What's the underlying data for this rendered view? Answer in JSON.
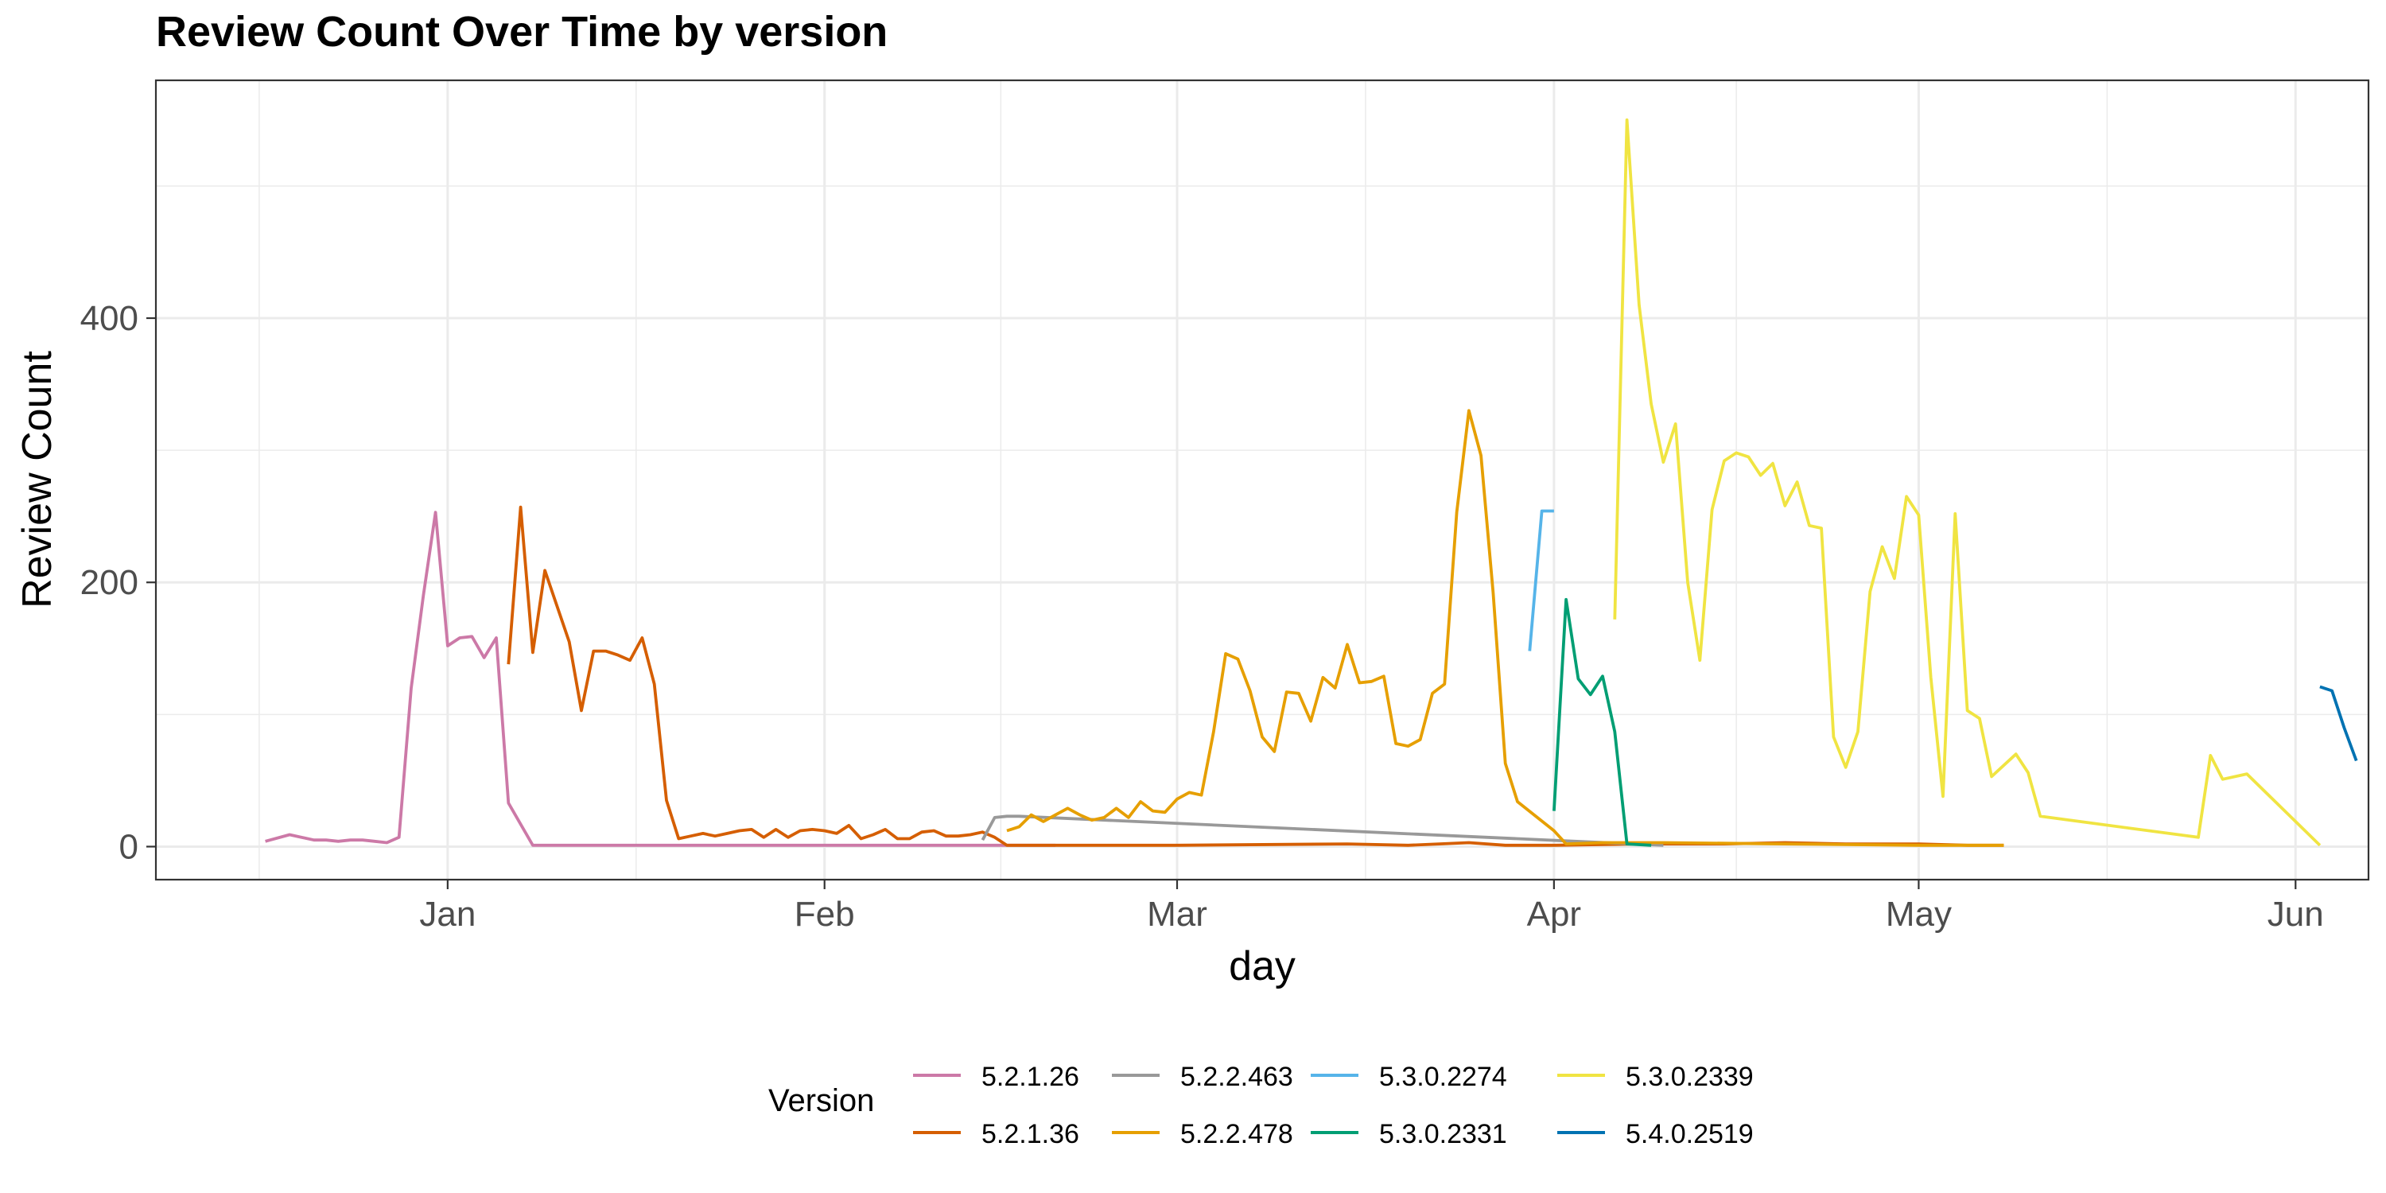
{
  "chart_data": {
    "type": "line",
    "title": "Review Count Over Time by version",
    "xlabel": "day",
    "ylabel": "Review Count",
    "x_ticks": [
      "Jan",
      "Feb",
      "Mar",
      "Apr",
      "May",
      "Jun"
    ],
    "x_tick_dates": [
      "2024-01-01",
      "2024-02-01",
      "2024-03-01",
      "2024-04-01",
      "2024-05-01",
      "2024-06-01"
    ],
    "xlim": [
      "2023-12-08",
      "2024-06-07"
    ],
    "y_ticks": [
      0,
      200,
      400
    ],
    "ylim": [
      -25,
      580
    ],
    "grid": true,
    "legend_title": "Version",
    "legend_position": "bottom",
    "series": [
      {
        "name": "5.2.1.26",
        "color": "#CC79A7",
        "points": [
          [
            "2023-12-17",
            4
          ],
          [
            "2023-12-19",
            9
          ],
          [
            "2023-12-21",
            5
          ],
          [
            "2023-12-22",
            5
          ],
          [
            "2023-12-23",
            4
          ],
          [
            "2023-12-24",
            5
          ],
          [
            "2023-12-25",
            5
          ],
          [
            "2023-12-26",
            4
          ],
          [
            "2023-12-27",
            3
          ],
          [
            "2023-12-28",
            7
          ],
          [
            "2023-12-29",
            120
          ],
          [
            "2023-12-30",
            190
          ],
          [
            "2023-12-31",
            253
          ],
          [
            "2024-01-01",
            152
          ],
          [
            "2024-01-02",
            158
          ],
          [
            "2024-01-03",
            159
          ],
          [
            "2024-01-04",
            143
          ],
          [
            "2024-01-05",
            158
          ],
          [
            "2024-01-06",
            33
          ],
          [
            "2024-01-08",
            1
          ],
          [
            "2024-01-20",
            1
          ],
          [
            "2024-02-01",
            1
          ],
          [
            "2024-02-15",
            1
          ],
          [
            "2024-02-20",
            1
          ]
        ]
      },
      {
        "name": "5.2.1.36",
        "color": "#D55E00",
        "points": [
          [
            "2024-01-06",
            138
          ],
          [
            "2024-01-07",
            257
          ],
          [
            "2024-01-08",
            147
          ],
          [
            "2024-01-09",
            209
          ],
          [
            "2024-01-11",
            155
          ],
          [
            "2024-01-12",
            103
          ],
          [
            "2024-01-13",
            148
          ],
          [
            "2024-01-14",
            148
          ],
          [
            "2024-01-15",
            145
          ],
          [
            "2024-01-16",
            141
          ],
          [
            "2024-01-17",
            158
          ],
          [
            "2024-01-18",
            123
          ],
          [
            "2024-01-19",
            35
          ],
          [
            "2024-01-20",
            6
          ],
          [
            "2024-01-21",
            8
          ],
          [
            "2024-01-22",
            10
          ],
          [
            "2024-01-23",
            8
          ],
          [
            "2024-01-24",
            10
          ],
          [
            "2024-01-25",
            12
          ],
          [
            "2024-01-26",
            13
          ],
          [
            "2024-01-27",
            7
          ],
          [
            "2024-01-28",
            13
          ],
          [
            "2024-01-29",
            7
          ],
          [
            "2024-01-30",
            12
          ],
          [
            "2024-01-31",
            13
          ],
          [
            "2024-02-01",
            12
          ],
          [
            "2024-02-02",
            10
          ],
          [
            "2024-02-03",
            16
          ],
          [
            "2024-02-04",
            6
          ],
          [
            "2024-02-05",
            9
          ],
          [
            "2024-02-06",
            13
          ],
          [
            "2024-02-07",
            6
          ],
          [
            "2024-02-08",
            6
          ],
          [
            "2024-02-09",
            11
          ],
          [
            "2024-02-10",
            12
          ],
          [
            "2024-02-11",
            8
          ],
          [
            "2024-02-12",
            8
          ],
          [
            "2024-02-13",
            9
          ],
          [
            "2024-02-14",
            11
          ],
          [
            "2024-02-15",
            7
          ],
          [
            "2024-02-16",
            1
          ],
          [
            "2024-03-01",
            1
          ],
          [
            "2024-03-15",
            2
          ],
          [
            "2024-03-20",
            1
          ],
          [
            "2024-03-25",
            3
          ],
          [
            "2024-03-28",
            1
          ],
          [
            "2024-04-01",
            1
          ],
          [
            "2024-04-08",
            2
          ],
          [
            "2024-04-15",
            2
          ],
          [
            "2024-04-20",
            3
          ],
          [
            "2024-04-25",
            2
          ],
          [
            "2024-05-01",
            2
          ],
          [
            "2024-05-05",
            1
          ],
          [
            "2024-05-08",
            1
          ]
        ]
      },
      {
        "name": "5.2.2.463",
        "color": "#999999",
        "points": [
          [
            "2024-02-14",
            5
          ],
          [
            "2024-02-15",
            22
          ],
          [
            "2024-02-16",
            23
          ],
          [
            "2024-02-17",
            23
          ],
          [
            "2024-04-10",
            1
          ]
        ]
      },
      {
        "name": "5.2.2.478",
        "color": "#E69F00",
        "points": [
          [
            "2024-02-16",
            12
          ],
          [
            "2024-02-17",
            15
          ],
          [
            "2024-02-18",
            24
          ],
          [
            "2024-02-19",
            19
          ],
          [
            "2024-02-20",
            24
          ],
          [
            "2024-02-21",
            29
          ],
          [
            "2024-02-22",
            24
          ],
          [
            "2024-02-23",
            20
          ],
          [
            "2024-02-24",
            22
          ],
          [
            "2024-02-25",
            29
          ],
          [
            "2024-02-26",
            22
          ],
          [
            "2024-02-27",
            34
          ],
          [
            "2024-02-28",
            27
          ],
          [
            "2024-02-29",
            26
          ],
          [
            "2024-03-01",
            36
          ],
          [
            "2024-03-02",
            41
          ],
          [
            "2024-03-03",
            39
          ],
          [
            "2024-03-04",
            87
          ],
          [
            "2024-03-05",
            146
          ],
          [
            "2024-03-06",
            142
          ],
          [
            "2024-03-07",
            118
          ],
          [
            "2024-03-08",
            83
          ],
          [
            "2024-03-09",
            72
          ],
          [
            "2024-03-10",
            117
          ],
          [
            "2024-03-11",
            116
          ],
          [
            "2024-03-12",
            95
          ],
          [
            "2024-03-13",
            128
          ],
          [
            "2024-03-14",
            120
          ],
          [
            "2024-03-15",
            153
          ],
          [
            "2024-03-16",
            124
          ],
          [
            "2024-03-17",
            125
          ],
          [
            "2024-03-18",
            129
          ],
          [
            "2024-03-19",
            78
          ],
          [
            "2024-03-20",
            76
          ],
          [
            "2024-03-21",
            81
          ],
          [
            "2024-03-22",
            116
          ],
          [
            "2024-03-23",
            123
          ],
          [
            "2024-03-24",
            253
          ],
          [
            "2024-03-25",
            330
          ],
          [
            "2024-03-26",
            296
          ],
          [
            "2024-03-27",
            192
          ],
          [
            "2024-03-28",
            63
          ],
          [
            "2024-03-29",
            34
          ],
          [
            "2024-04-01",
            12
          ],
          [
            "2024-04-02",
            2
          ],
          [
            "2024-04-05",
            3
          ],
          [
            "2024-04-10",
            3
          ],
          [
            "2024-04-20",
            2
          ],
          [
            "2024-05-01",
            1
          ],
          [
            "2024-05-08",
            1
          ]
        ]
      },
      {
        "name": "5.3.0.2274",
        "color": "#56B4E9",
        "points": [
          [
            "2024-03-30",
            148
          ],
          [
            "2024-03-31",
            254
          ],
          [
            "2024-04-01",
            254
          ]
        ]
      },
      {
        "name": "5.3.0.2331",
        "color": "#009E73",
        "points": [
          [
            "2024-04-01",
            27
          ],
          [
            "2024-04-02",
            187
          ],
          [
            "2024-04-03",
            127
          ],
          [
            "2024-04-04",
            115
          ],
          [
            "2024-04-05",
            129
          ],
          [
            "2024-04-06",
            87
          ],
          [
            "2024-04-07",
            2
          ],
          [
            "2024-04-09",
            1
          ]
        ]
      },
      {
        "name": "5.3.0.2339",
        "color": "#F0E442",
        "points": [
          [
            "2024-04-06",
            172
          ],
          [
            "2024-04-07",
            550
          ],
          [
            "2024-04-08",
            410
          ],
          [
            "2024-04-09",
            335
          ],
          [
            "2024-04-10",
            291
          ],
          [
            "2024-04-11",
            320
          ],
          [
            "2024-04-12",
            200
          ],
          [
            "2024-04-13",
            141
          ],
          [
            "2024-04-14",
            255
          ],
          [
            "2024-04-15",
            292
          ],
          [
            "2024-04-16",
            298
          ],
          [
            "2024-04-17",
            295
          ],
          [
            "2024-04-18",
            281
          ],
          [
            "2024-04-19",
            290
          ],
          [
            "2024-04-20",
            258
          ],
          [
            "2024-04-21",
            276
          ],
          [
            "2024-04-22",
            243
          ],
          [
            "2024-04-23",
            241
          ],
          [
            "2024-04-24",
            83
          ],
          [
            "2024-04-25",
            60
          ],
          [
            "2024-04-26",
            87
          ],
          [
            "2024-04-27",
            193
          ],
          [
            "2024-04-28",
            227
          ],
          [
            "2024-04-29",
            203
          ],
          [
            "2024-04-30",
            265
          ],
          [
            "2024-05-01",
            251
          ],
          [
            "2024-05-02",
            128
          ],
          [
            "2024-05-03",
            38
          ],
          [
            "2024-05-04",
            252
          ],
          [
            "2024-05-05",
            103
          ],
          [
            "2024-05-06",
            97
          ],
          [
            "2024-05-07",
            53
          ],
          [
            "2024-05-09",
            70
          ],
          [
            "2024-05-10",
            56
          ],
          [
            "2024-05-11",
            23
          ],
          [
            "2024-05-24",
            7
          ],
          [
            "2024-05-25",
            69
          ],
          [
            "2024-05-26",
            51
          ],
          [
            "2024-05-28",
            55
          ],
          [
            "2024-06-03",
            1
          ]
        ]
      },
      {
        "name": "5.4.0.2519",
        "color": "#0072B2",
        "points": [
          [
            "2024-06-03",
            121
          ],
          [
            "2024-06-04",
            118
          ],
          [
            "2024-06-05",
            90
          ],
          [
            "2024-06-06",
            65
          ]
        ]
      }
    ]
  }
}
